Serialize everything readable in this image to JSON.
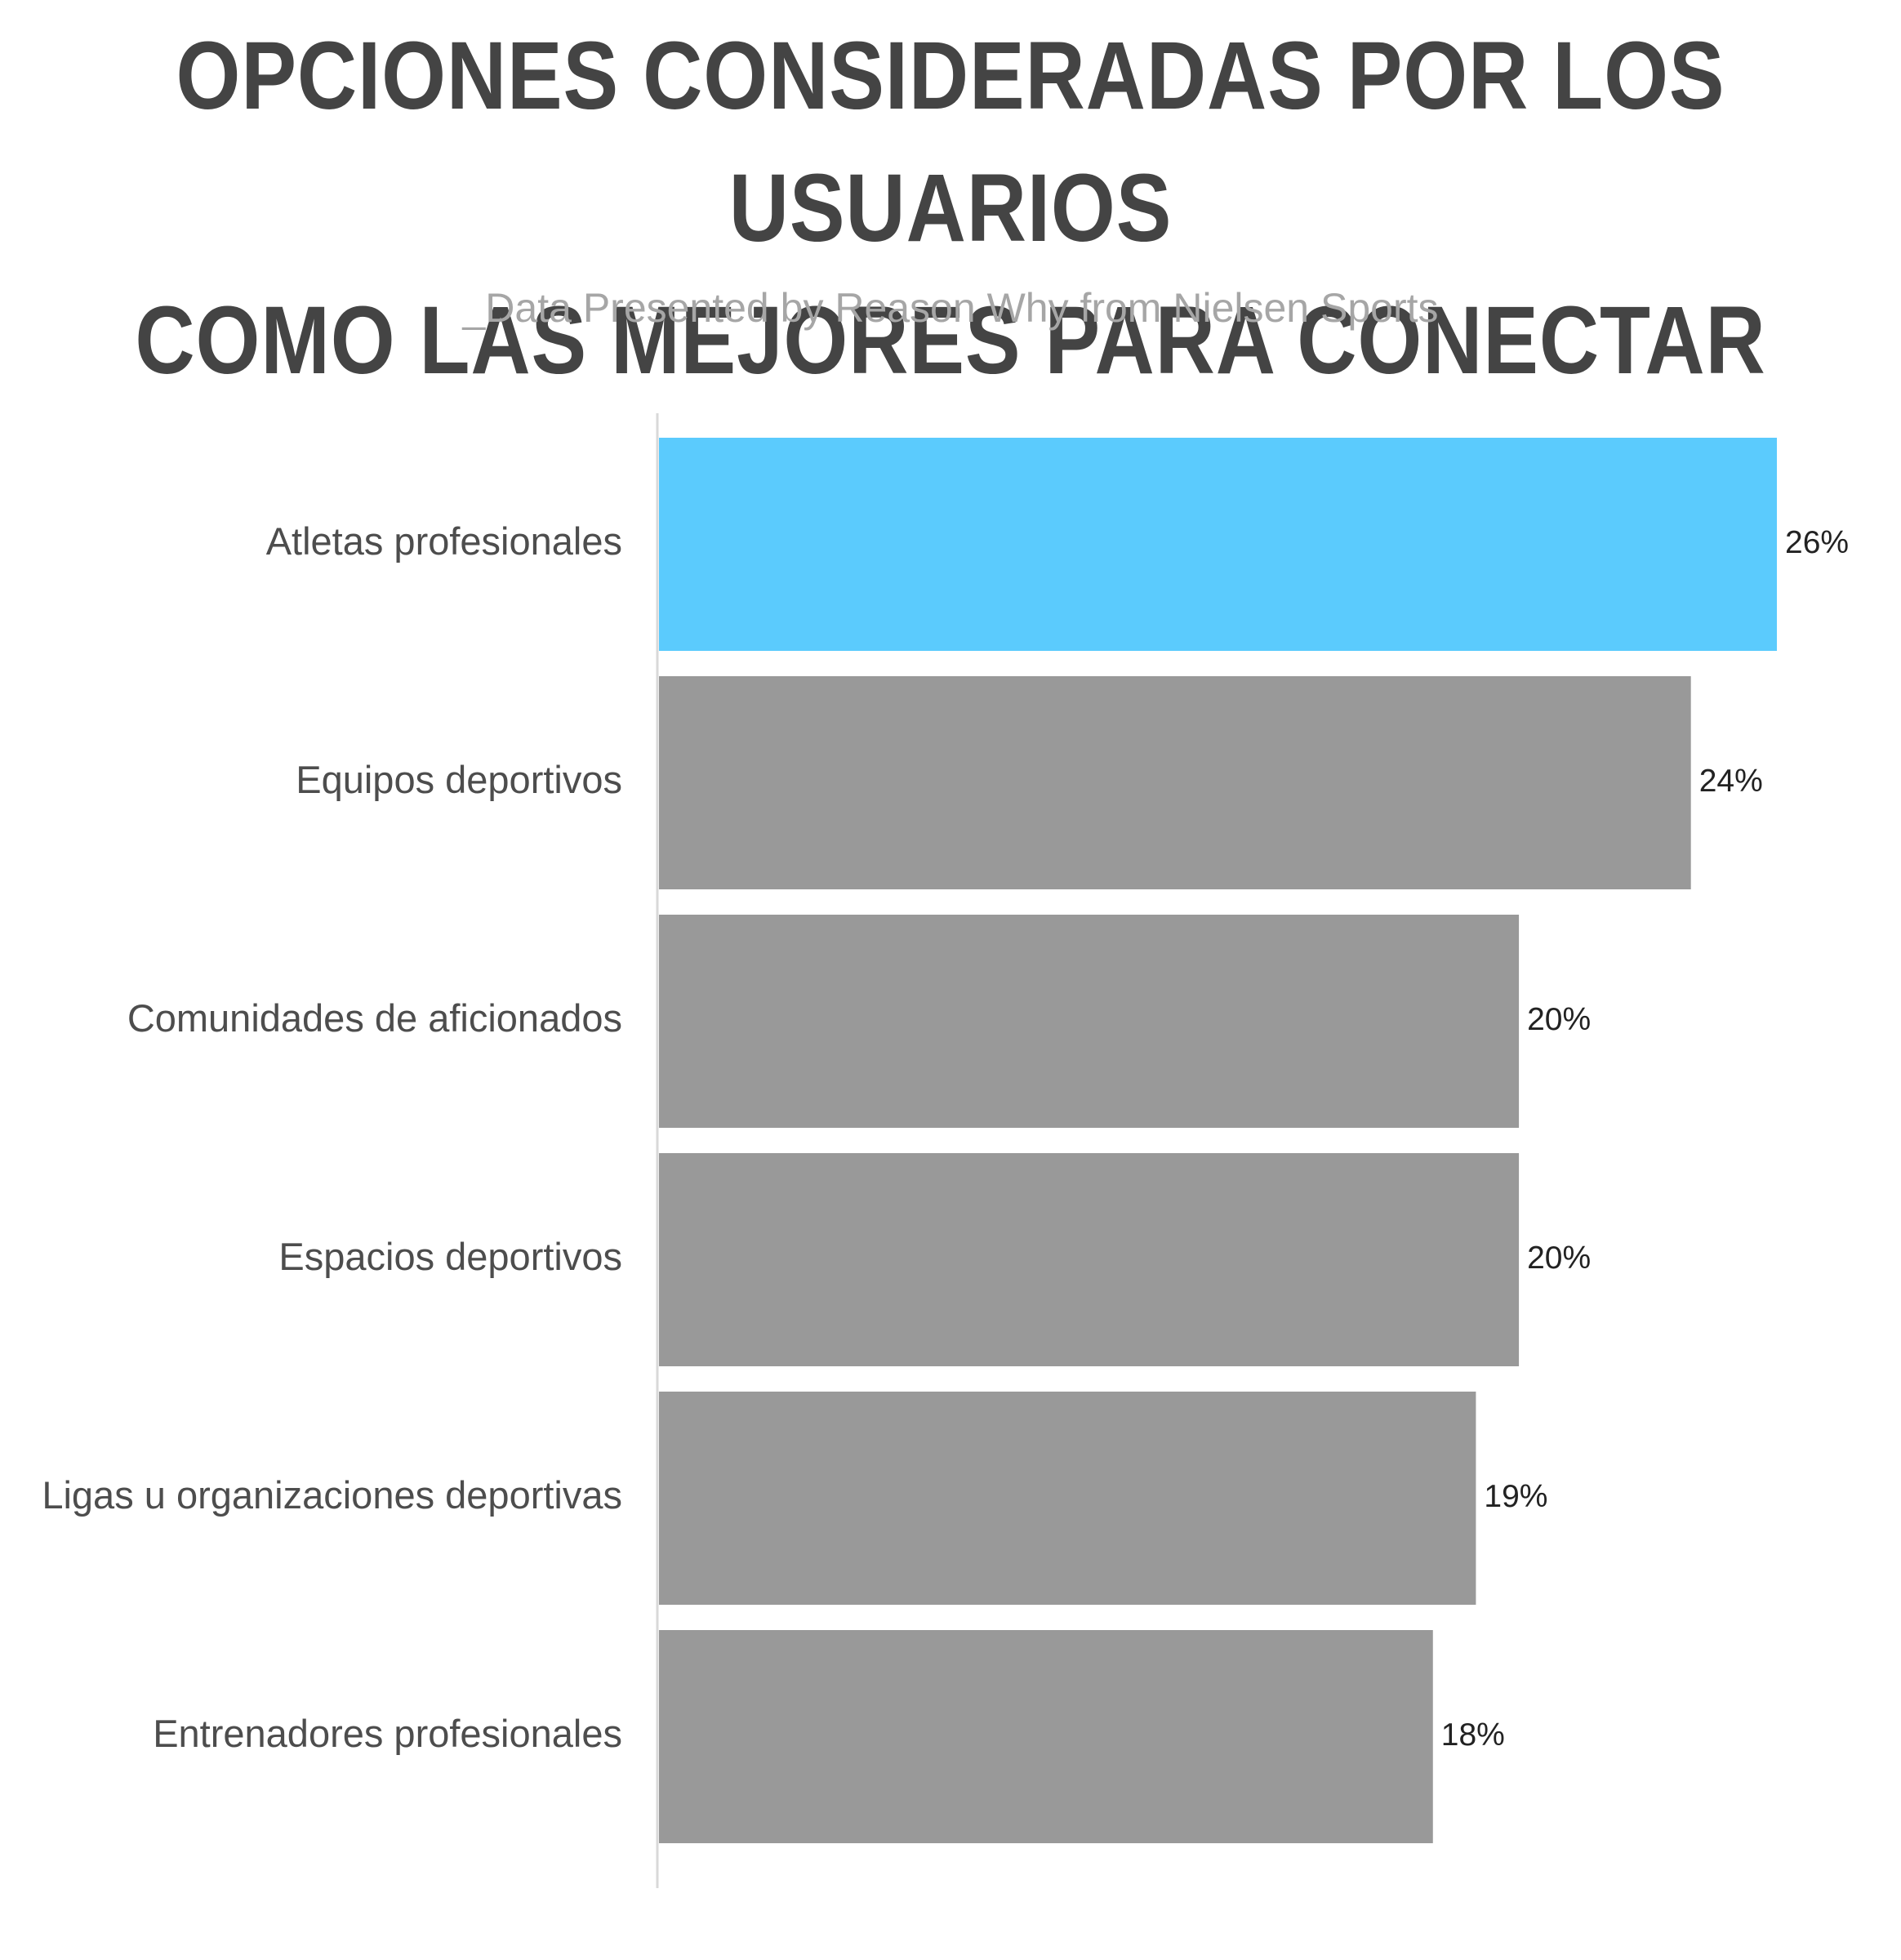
{
  "title_lines": [
    "OPCIONES CONSIDERADAS POR LOS USUARIOS",
    "COMO LAS MEJORES PARA CONECTAR"
  ],
  "subtitle": "_Data Presented by Reason Why from Nielsen Sports",
  "colors": {
    "highlight": "#5bcbfd",
    "bar": "#999999",
    "axis": "#d9d9d9",
    "title": "#444444",
    "subtitle": "#a6a6a6"
  },
  "chart_data": {
    "type": "bar",
    "orientation": "horizontal",
    "categories": [
      "Atletas profesionales",
      "Equipos deportivos",
      "Comunidades de aficionados",
      "Espacios deportivos",
      "Ligas u organizaciones deportivas",
      "Entrenadores profesionales"
    ],
    "values": [
      26,
      24,
      20,
      20,
      19,
      18
    ],
    "value_labels": [
      "26%",
      "24%",
      "20%",
      "20%",
      "19%",
      "18%"
    ],
    "unit": "%",
    "highlight_index": 0,
    "xlim": [
      0,
      26
    ],
    "grid": false,
    "legend": "none"
  }
}
